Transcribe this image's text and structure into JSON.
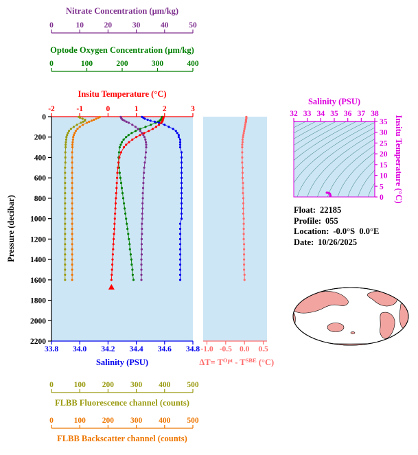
{
  "colors": {
    "plot_background": "#CDE6F5",
    "map_land": "#F2A4A0",
    "map_ocean": "#FFFFFF",
    "ts_contour": "#4E8F8F"
  },
  "axes": {
    "nitrate": {
      "label": "Nitrate Concentration (µm/kg)",
      "color": "#7E2F8E",
      "ticks": [
        0,
        10,
        20,
        30,
        40,
        50
      ],
      "range": [
        0,
        50
      ]
    },
    "oxygen": {
      "label": "Optode Oxygen Concentration (µm/kg)",
      "color": "#007F00",
      "ticks": [
        0,
        100,
        200,
        300,
        400
      ],
      "range": [
        0,
        400
      ]
    },
    "temperature": {
      "label": "Insitu Temperature (°C)",
      "color": "#FF0000",
      "ticks": [
        -2,
        -1,
        0,
        1,
        2,
        3
      ],
      "range": [
        -2,
        3
      ]
    },
    "pressure": {
      "label": "Pressure (decibar)",
      "color": "#000000",
      "ticks": [
        0,
        200,
        400,
        600,
        800,
        1000,
        1200,
        1400,
        1600,
        1800,
        2000,
        2200
      ],
      "range": [
        0,
        2200
      ]
    },
    "salinity": {
      "label": "Salinity (PSU)",
      "color": "#0000EE",
      "ticks": [
        "33.8",
        "34.0",
        "34.2",
        "34.4",
        "34.6",
        "34.8"
      ],
      "range": [
        33.8,
        34.8
      ]
    },
    "fluorescence": {
      "label": "FLBB Fluorescence channel (counts)",
      "color": "#9A9A10",
      "ticks": [
        0,
        100,
        200,
        300,
        400,
        500
      ],
      "range": [
        0,
        500
      ]
    },
    "backscatter": {
      "label": "FLBB Backscatter channel (counts)",
      "color": "#EE7600",
      "ticks": [
        0,
        100,
        200,
        300,
        400,
        500
      ],
      "range": [
        0,
        500
      ]
    },
    "delta_t": {
      "color": "#FF6A6A",
      "ticks": [
        "-1.0",
        "-0.5",
        "0.0",
        "0.5"
      ],
      "range": [
        -1.1,
        0.6
      ],
      "label_parts": {
        "p1": "ΔT= T",
        "sup1": "Opt",
        "p2": " - T",
        "sup2": "SBE",
        "p3": " (°C)"
      }
    },
    "ts_salinity": {
      "label": "Salinity (PSU)",
      "color": "#DD00DD",
      "ticks": [
        32,
        33,
        34,
        35,
        36,
        37,
        38
      ],
      "range": [
        32,
        38
      ]
    },
    "ts_temperature": {
      "label": "Insitu Temperature (°C)",
      "color": "#DD00DD",
      "ticks": [
        0,
        5,
        10,
        15,
        20,
        25,
        30,
        35
      ],
      "range": [
        0,
        35
      ]
    }
  },
  "info": {
    "float_label": "Float:",
    "float_value": "22185",
    "profile_label": "Profile:",
    "profile_value": "055",
    "location_label": "Location:",
    "location_value": "-0.0°S  0.0°E",
    "date_label": "Date:",
    "date_value": "10/26/2025"
  },
  "chart_data": [
    {
      "type": "line",
      "title": "Vertical profiles vs pressure",
      "ylabel": "Pressure (decibar)",
      "ylim": [
        0,
        2200
      ],
      "x_pressure_dbar": [
        2,
        10,
        20,
        30,
        40,
        50,
        60,
        80,
        100,
        120,
        140,
        160,
        180,
        200,
        225,
        250,
        275,
        300,
        350,
        400,
        450,
        500,
        550,
        600,
        650,
        700,
        750,
        800,
        850,
        900,
        950,
        1000,
        1050,
        1100,
        1150,
        1200,
        1250,
        1300,
        1350,
        1400,
        1450,
        1500,
        1550,
        1600
      ],
      "series": [
        {
          "name": "Optode Oxygen Concentration (µm/kg)",
          "axis": "oxygen",
          "color": "#007F00",
          "values": [
            313,
            312,
            311,
            309,
            306,
            301,
            295,
            281,
            266,
            251,
            238,
            227,
            218,
            211,
            204,
            199,
            196,
            193,
            191,
            190,
            190,
            191,
            193,
            195,
            197,
            199,
            201,
            203,
            205,
            207,
            209,
            211,
            213,
            215,
            217,
            219,
            221,
            222,
            224,
            226,
            227,
            229,
            230,
            232
          ]
        },
        {
          "name": "FLBB Fluorescence channel (counts)",
          "axis": "fluorescence",
          "color": "#9A9A10",
          "values": [
            96,
            101,
            110,
            119,
            118,
            112,
            104,
            90,
            79,
            69,
            62,
            58,
            55,
            53,
            52,
            51,
            50,
            50,
            49,
            49,
            49,
            48,
            48,
            48,
            48,
            48,
            48,
            48,
            48,
            48,
            48,
            48,
            48,
            48,
            48,
            48,
            48,
            48,
            48,
            48,
            48,
            48,
            48,
            48
          ]
        },
        {
          "name": "FLBB Backscatter channel (counts)",
          "axis": "backscatter",
          "color": "#EE7600",
          "values": [
            171,
            166,
            158,
            150,
            142,
            133,
            125,
            111,
            100,
            92,
            86,
            82,
            79,
            77,
            76,
            75,
            74,
            74,
            73,
            73,
            73,
            73,
            73,
            73,
            73,
            73,
            73,
            73,
            73,
            73,
            73,
            73,
            73,
            73,
            73,
            73,
            73,
            73,
            73,
            73,
            73,
            73,
            73,
            73
          ]
        },
        {
          "name": "Salinity (PSU)",
          "axis": "salinity",
          "color": "#0000EE",
          "values": [
            34.44,
            34.45,
            34.46,
            34.48,
            34.5,
            34.53,
            34.56,
            34.6,
            34.63,
            34.66,
            34.68,
            34.69,
            34.7,
            34.7,
            34.71,
            34.71,
            34.71,
            34.71,
            34.72,
            34.72,
            34.72,
            34.72,
            34.72,
            34.72,
            34.72,
            34.72,
            34.72,
            34.72,
            34.72,
            34.72,
            34.72,
            34.72,
            34.71,
            34.71,
            34.71,
            34.71,
            34.71,
            34.71,
            34.71,
            34.71,
            34.71,
            34.71,
            34.71,
            34.71
          ]
        },
        {
          "name": "Nitrate Concentration (µm/kg)",
          "axis": "nitrate",
          "color": "#7E2F8E",
          "values": [
            24.5,
            24.6,
            24.8,
            25.2,
            25.8,
            26.5,
            27.3,
            28.6,
            29.7,
            30.6,
            31.4,
            32.0,
            32.5,
            32.9,
            33.2,
            33.4,
            33.5,
            33.5,
            33.4,
            33.2,
            33.0,
            32.8,
            32.7,
            32.6,
            32.5,
            32.4,
            32.3,
            32.3,
            32.2,
            32.2,
            32.1,
            32.1,
            32.0,
            32.0,
            32.0,
            31.9,
            31.9,
            31.9,
            31.9,
            31.8,
            31.8,
            31.8,
            31.8,
            31.8
          ]
        },
        {
          "name": "Insitu Temperature (°C)",
          "axis": "temperature",
          "color": "#FF0000",
          "end_marker": "triangle",
          "values": [
            1.96,
            1.96,
            1.95,
            1.94,
            1.93,
            1.91,
            1.88,
            1.8,
            1.7,
            1.58,
            1.44,
            1.28,
            1.13,
            1.0,
            0.86,
            0.74,
            0.64,
            0.56,
            0.46,
            0.4,
            0.37,
            0.35,
            0.33,
            0.32,
            0.31,
            0.3,
            0.29,
            0.28,
            0.27,
            0.26,
            0.25,
            0.24,
            0.23,
            0.22,
            0.21,
            0.2,
            0.19,
            0.18,
            0.17,
            0.16,
            0.15,
            0.14,
            0.13,
            0.12
          ]
        }
      ]
    },
    {
      "type": "line",
      "title": "Optode minus SBE temperature difference vs pressure",
      "series": [
        {
          "name": "ΔT (°C)",
          "axis": "delta_t",
          "color": "#FF6A6A",
          "values": [
            0.05,
            0.05,
            0.05,
            0.04,
            0.04,
            0.04,
            0.03,
            0.02,
            0.01,
            0.0,
            -0.01,
            -0.02,
            -0.03,
            -0.04,
            -0.05,
            -0.05,
            -0.06,
            -0.06,
            -0.06,
            -0.06,
            -0.06,
            -0.05,
            -0.05,
            -0.05,
            -0.04,
            -0.04,
            -0.04,
            -0.03,
            -0.03,
            -0.03,
            -0.03,
            -0.02,
            -0.02,
            -0.02,
            -0.02,
            -0.02,
            -0.01,
            -0.01,
            -0.01,
            -0.01,
            -0.01,
            -0.01,
            0.0,
            0.0
          ]
        }
      ]
    },
    {
      "type": "scatter",
      "title": "T-S diagram",
      "xlabel": "Salinity (PSU)",
      "ylabel": "Insitu Temperature (°C)",
      "xlim": [
        32,
        38
      ],
      "ylim": [
        0,
        35
      ],
      "background": "potential-density isopycnal contours",
      "points_note": "profile points cluster near S 34.4-34.7, T 0.1-2.0"
    }
  ]
}
